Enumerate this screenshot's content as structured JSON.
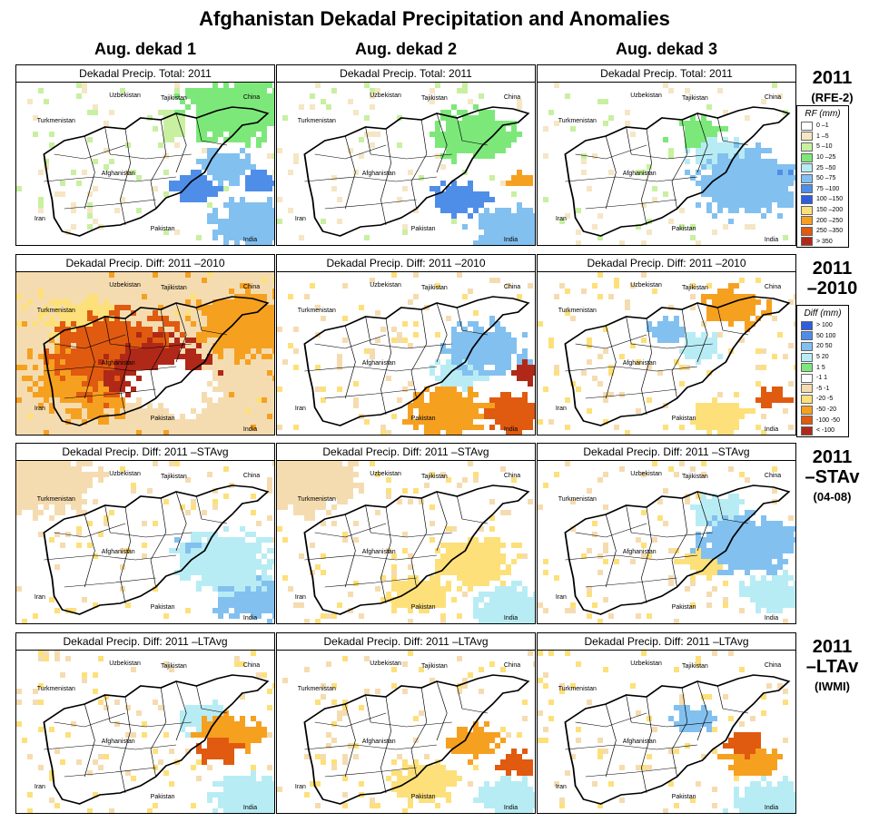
{
  "title": "Afghanistan Dekadal Precipitation and Anomalies",
  "columns": [
    "Aug. dekad 1",
    "Aug. dekad 2",
    "Aug. dekad 3"
  ],
  "rows": [
    {
      "title": "2011",
      "sub": "(RFE-2)",
      "panel_title": "Dekadal Precip. Total: 2011",
      "type": "rf"
    },
    {
      "title": "2011\n–2010",
      "sub": "",
      "panel_title": "Dekadal Precip. Diff:  2011 –2010",
      "type": "diff"
    },
    {
      "title": "2011\n–STAv",
      "sub": "(04-08)",
      "panel_title": "Dekadal Precip. Diff:  2011 –STAvg",
      "type": "diff"
    },
    {
      "title": "2011\n–LTAv",
      "sub": "(IWMI)",
      "panel_title": "Dekadal Precip. Diff:  2011 –LTAvg",
      "type": "diff"
    }
  ],
  "country_labels": [
    "Uzbekistan",
    "Tajikistan",
    "China",
    "Turkmenistan",
    "Afghanistan",
    "Iran",
    "Pakistan",
    "India"
  ],
  "legends": {
    "rf": {
      "title": "RF (mm)",
      "items": [
        {
          "label": "0 –1",
          "color": "#ffffff"
        },
        {
          "label": "1 –5",
          "color": "#f5e6c4"
        },
        {
          "label": "5 –10",
          "color": "#c8f0a0"
        },
        {
          "label": "10 –25",
          "color": "#7de87a"
        },
        {
          "label": "25 –50",
          "color": "#b8ecf4"
        },
        {
          "label": "50 –75",
          "color": "#82c0f0"
        },
        {
          "label": "75 –100",
          "color": "#4f8ee8"
        },
        {
          "label": "100 –150",
          "color": "#2e5ee0"
        },
        {
          "label": "150 –200",
          "color": "#fde07a"
        },
        {
          "label": "200 –250",
          "color": "#f6a020"
        },
        {
          "label": "250 –350",
          "color": "#e05a10"
        },
        {
          "label": "> 350",
          "color": "#b02818"
        }
      ]
    },
    "diff": {
      "title": "Diff (mm)",
      "items": [
        {
          "label": "> 100",
          "color": "#2e5ee0"
        },
        {
          "label": "50  100",
          "color": "#4f8ee8"
        },
        {
          "label": "20  50",
          "color": "#82c0f0"
        },
        {
          "label": "5  20",
          "color": "#b8ecf4"
        },
        {
          "label": "1  5",
          "color": "#7de87a"
        },
        {
          "label": "-1  1",
          "color": "#ffffff"
        },
        {
          "label": "-5  -1",
          "color": "#f5dcb0"
        },
        {
          "label": "-20  -5",
          "color": "#fde07a"
        },
        {
          "label": "-50  -20",
          "color": "#f6a020"
        },
        {
          "label": "-100  -50",
          "color": "#e05a10"
        },
        {
          "label": "< -100",
          "color": "#b02818"
        }
      ]
    }
  },
  "panel_fields": [
    [
      {
        "zones": [
          [
            0.85,
            0.15,
            0.2,
            3
          ],
          [
            0.68,
            0.62,
            0.09,
            6
          ],
          [
            0.93,
            0.6,
            0.06,
            6
          ],
          [
            0.8,
            0.5,
            0.1,
            5
          ],
          [
            0.58,
            0.25,
            0.08,
            2
          ],
          [
            0.9,
            0.85,
            0.15,
            5
          ]
        ],
        "default": 0
      },
      {
        "zones": [
          [
            0.7,
            0.7,
            0.1,
            6
          ],
          [
            0.93,
            0.58,
            0.05,
            9
          ],
          [
            0.75,
            0.3,
            0.15,
            3
          ],
          [
            0.9,
            0.9,
            0.15,
            5
          ]
        ],
        "default": 0
      },
      {
        "zones": [
          [
            0.8,
            0.6,
            0.2,
            5
          ],
          [
            0.7,
            0.45,
            0.12,
            4
          ],
          [
            0.92,
            0.55,
            0.08,
            6
          ],
          [
            0.6,
            0.3,
            0.1,
            3
          ],
          [
            0.95,
            0.7,
            0.06,
            5
          ]
        ],
        "default": 0
      }
    ],
    [
      {
        "zones": [
          [
            0.6,
            0.7,
            0.16,
            11
          ],
          [
            0.55,
            0.6,
            0.2,
            10
          ],
          [
            0.4,
            0.5,
            0.25,
            9
          ],
          [
            0.3,
            0.6,
            0.25,
            8
          ],
          [
            0.9,
            0.3,
            0.2,
            8
          ],
          [
            0.25,
            0.3,
            0.15,
            7
          ]
        ],
        "default": 6
      },
      {
        "zones": [
          [
            0.65,
            0.85,
            0.15,
            8
          ],
          [
            0.9,
            0.85,
            0.12,
            9
          ],
          [
            0.8,
            0.45,
            0.15,
            2
          ],
          [
            0.95,
            0.6,
            0.06,
            10
          ],
          [
            0.7,
            0.6,
            0.1,
            3
          ]
        ],
        "default": 5
      },
      {
        "zones": [
          [
            0.75,
            0.2,
            0.12,
            8
          ],
          [
            0.62,
            0.45,
            0.08,
            3
          ],
          [
            0.5,
            0.35,
            0.08,
            2
          ],
          [
            0.9,
            0.75,
            0.06,
            9
          ],
          [
            0.7,
            0.88,
            0.1,
            7
          ]
        ],
        "default": 5
      }
    ],
    [
      {
        "zones": [
          [
            0.8,
            0.6,
            0.18,
            3
          ],
          [
            0.7,
            0.55,
            0.1,
            2
          ],
          [
            0.1,
            0.1,
            0.2,
            6
          ],
          [
            0.9,
            0.8,
            0.15,
            2
          ]
        ],
        "default": 5
      },
      {
        "zones": [
          [
            0.75,
            0.6,
            0.15,
            7
          ],
          [
            0.55,
            0.8,
            0.12,
            7
          ],
          [
            0.9,
            0.9,
            0.15,
            3
          ],
          [
            0.1,
            0.1,
            0.2,
            6
          ]
        ],
        "default": 5
      },
      {
        "zones": [
          [
            0.8,
            0.5,
            0.18,
            2
          ],
          [
            0.65,
            0.6,
            0.1,
            7
          ],
          [
            0.9,
            0.8,
            0.12,
            3
          ],
          [
            0.7,
            0.3,
            0.1,
            3
          ]
        ],
        "default": 5
      }
    ],
    [
      {
        "zones": [
          [
            0.78,
            0.6,
            0.08,
            9
          ],
          [
            0.82,
            0.5,
            0.12,
            8
          ],
          [
            0.72,
            0.4,
            0.1,
            3
          ],
          [
            0.9,
            0.9,
            0.15,
            3
          ]
        ],
        "default": 5
      },
      {
        "zones": [
          [
            0.92,
            0.68,
            0.07,
            9
          ],
          [
            0.75,
            0.55,
            0.1,
            8
          ],
          [
            0.55,
            0.8,
            0.12,
            7
          ],
          [
            0.9,
            0.9,
            0.12,
            3
          ]
        ],
        "default": 5
      },
      {
        "zones": [
          [
            0.8,
            0.55,
            0.08,
            9
          ],
          [
            0.82,
            0.65,
            0.1,
            8
          ],
          [
            0.9,
            0.95,
            0.15,
            3
          ],
          [
            0.6,
            0.4,
            0.08,
            2
          ]
        ],
        "default": 5
      }
    ]
  ]
}
